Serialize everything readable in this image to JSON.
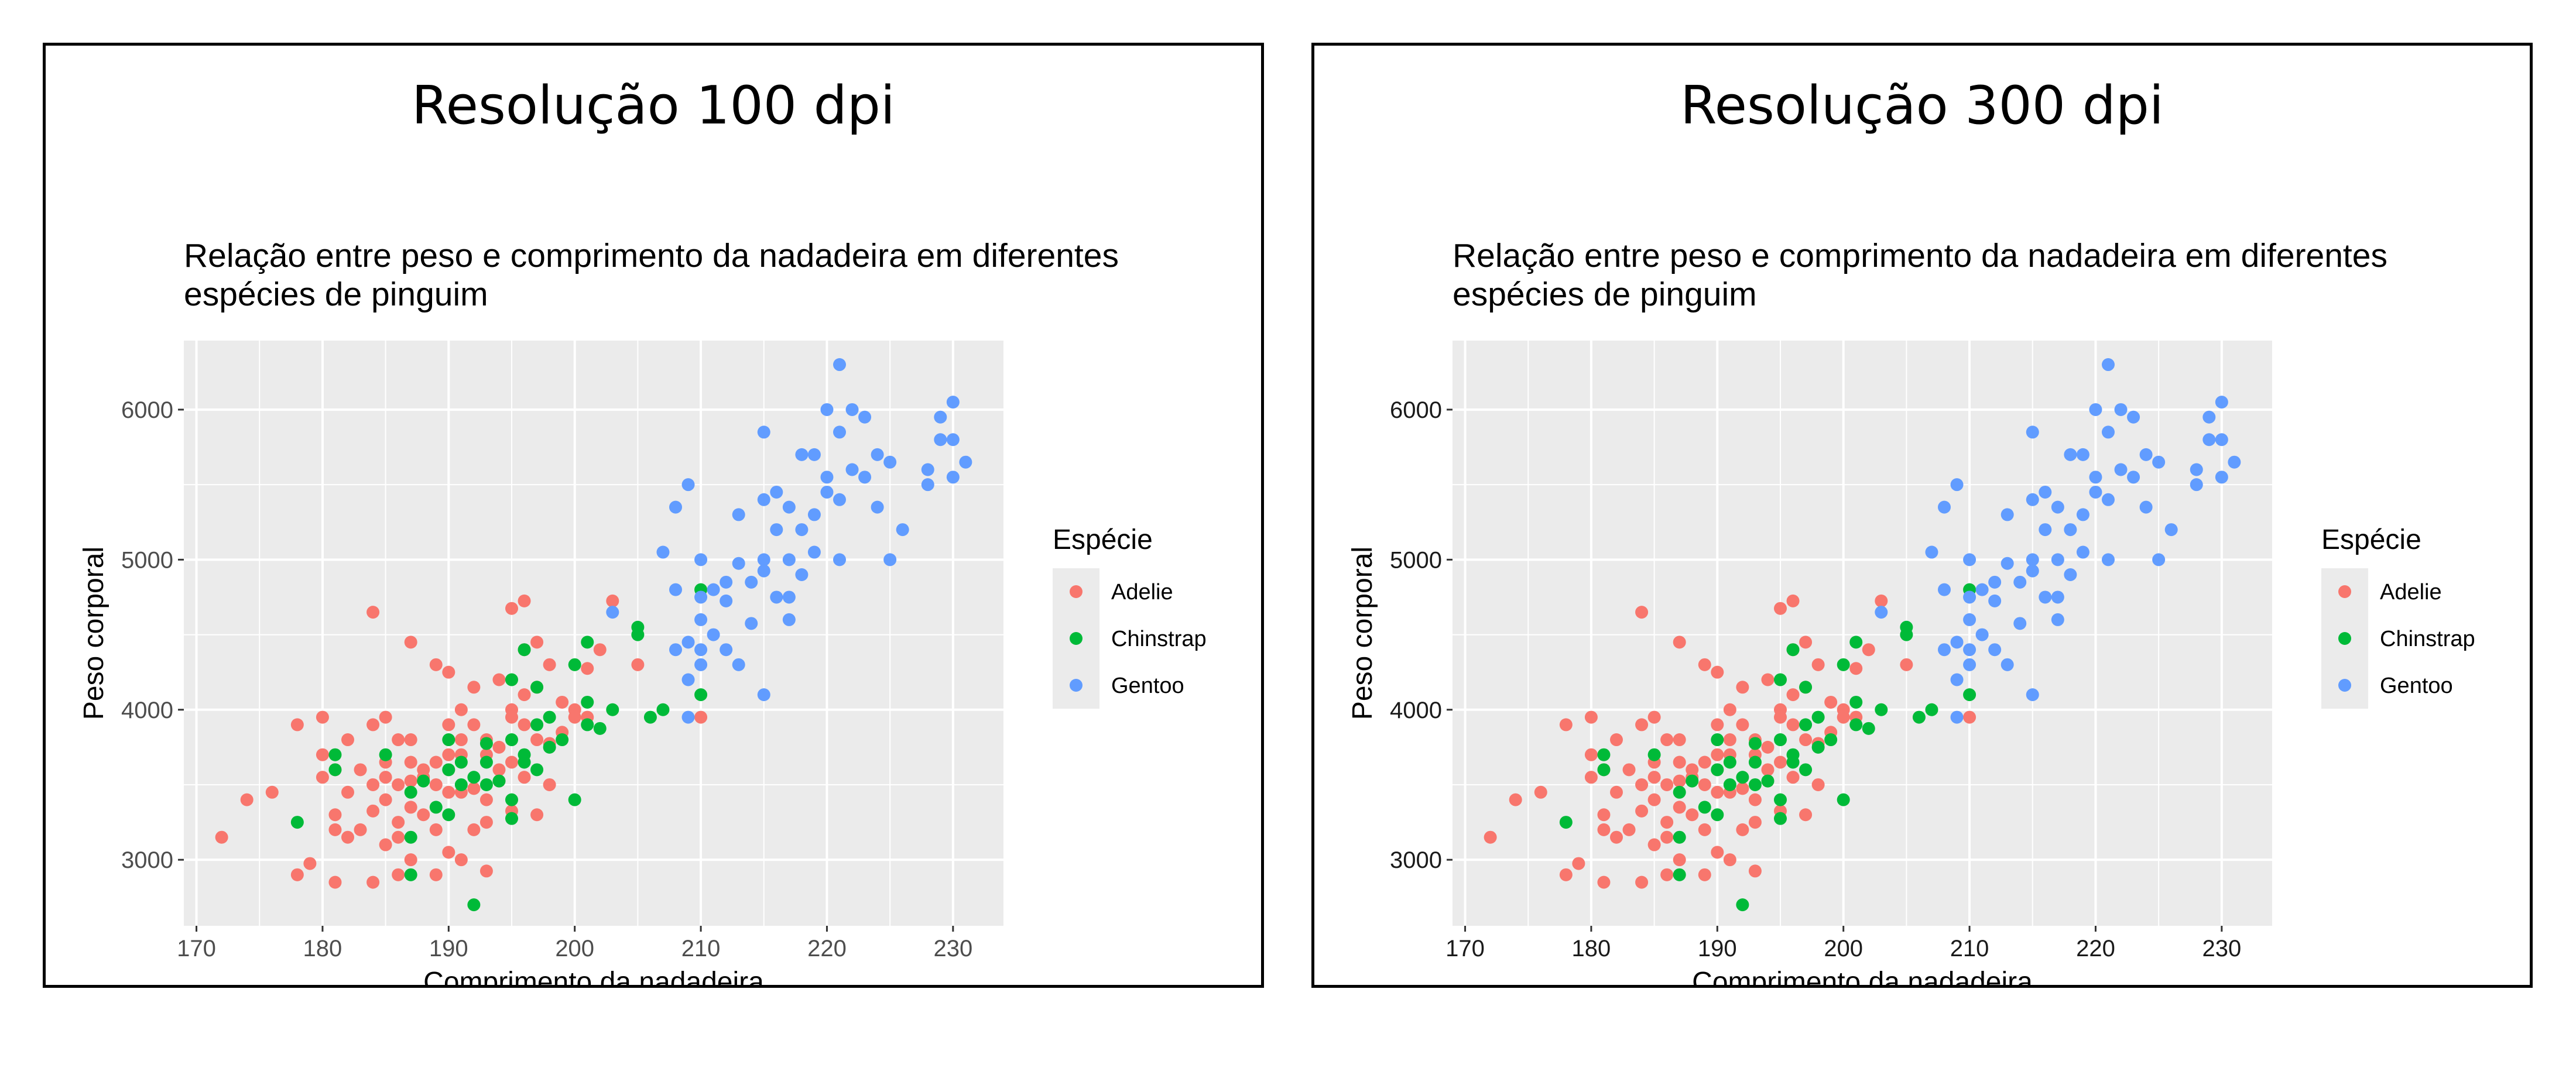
{
  "panels": [
    {
      "id": "left",
      "heading": "Resolução 100 dpi",
      "style": {
        "tick_label_color": "#4d4d4d",
        "title_color": "#000000"
      }
    },
    {
      "id": "right",
      "heading": "Resolução 300 dpi",
      "style": {
        "tick_label_color": "#1a1a1a",
        "title_color": "#000000"
      }
    }
  ],
  "colors": {
    "Adelie": "#F8766D",
    "Chinstrap": "#00BA38",
    "Gentoo": "#619CFF",
    "panel_background": "#EBEBEB",
    "grid": "#FFFFFF"
  },
  "chart_data": {
    "type": "scatter",
    "title_lines": [
      "Relação entre peso e comprimento da nadadeira em diferentes",
      "espécies de pinguim"
    ],
    "xlabel": "Comprimento da nadadeira",
    "ylabel": "Peso corporal",
    "xlim": [
      169,
      234
    ],
    "ylim": [
      2560,
      6460
    ],
    "x_ticks": [
      170,
      180,
      190,
      200,
      210,
      220,
      230
    ],
    "y_ticks": [
      3000,
      4000,
      5000,
      6000
    ],
    "grid": true,
    "legend": {
      "title": "Espécie",
      "position": "right",
      "entries": [
        "Adelie",
        "Chinstrap",
        "Gentoo"
      ]
    },
    "series": [
      {
        "name": "Adelie",
        "points": [
          [
            172,
            3150
          ],
          [
            174,
            3400
          ],
          [
            176,
            3450
          ],
          [
            178,
            2900
          ],
          [
            178,
            3900
          ],
          [
            179,
            2975
          ],
          [
            180,
            3700
          ],
          [
            180,
            3950
          ],
          [
            180,
            3550
          ],
          [
            181,
            3600
          ],
          [
            181,
            3300
          ],
          [
            181,
            2850
          ],
          [
            181,
            3200
          ],
          [
            182,
            3150
          ],
          [
            182,
            3800
          ],
          [
            182,
            3450
          ],
          [
            183,
            3600
          ],
          [
            183,
            3200
          ],
          [
            184,
            4650
          ],
          [
            184,
            3325
          ],
          [
            184,
            3900
          ],
          [
            184,
            2850
          ],
          [
            184,
            3500
          ],
          [
            185,
            3550
          ],
          [
            185,
            3400
          ],
          [
            185,
            3950
          ],
          [
            185,
            3650
          ],
          [
            185,
            3100
          ],
          [
            186,
            3800
          ],
          [
            186,
            3250
          ],
          [
            186,
            3500
          ],
          [
            186,
            3150
          ],
          [
            186,
            2900
          ],
          [
            187,
            4450
          ],
          [
            187,
            3350
          ],
          [
            187,
            3650
          ],
          [
            187,
            3800
          ],
          [
            187,
            3525
          ],
          [
            187,
            3000
          ],
          [
            188,
            3550
          ],
          [
            188,
            3300
          ],
          [
            188,
            3600
          ],
          [
            189,
            3200
          ],
          [
            189,
            3650
          ],
          [
            189,
            4300
          ],
          [
            189,
            3500
          ],
          [
            189,
            2900
          ],
          [
            190,
            4250
          ],
          [
            190,
            3700
          ],
          [
            190,
            3450
          ],
          [
            190,
            3900
          ],
          [
            190,
            3050
          ],
          [
            190,
            3600
          ],
          [
            191,
            3800
          ],
          [
            191,
            4000
          ],
          [
            191,
            3700
          ],
          [
            191,
            3450
          ],
          [
            191,
            3000
          ],
          [
            192,
            3900
          ],
          [
            192,
            3475
          ],
          [
            192,
            3200
          ],
          [
            192,
            4150
          ],
          [
            193,
            3700
          ],
          [
            193,
            3800
          ],
          [
            193,
            2925
          ],
          [
            193,
            3250
          ],
          [
            193,
            3400
          ],
          [
            194,
            4200
          ],
          [
            194,
            3600
          ],
          [
            194,
            3750
          ],
          [
            194,
            3525
          ],
          [
            195,
            4000
          ],
          [
            195,
            3650
          ],
          [
            195,
            3950
          ],
          [
            195,
            4675
          ],
          [
            195,
            3325
          ],
          [
            196,
            4100
          ],
          [
            196,
            3550
          ],
          [
            196,
            4400
          ],
          [
            196,
            4725
          ],
          [
            196,
            3900
          ],
          [
            197,
            4150
          ],
          [
            197,
            3300
          ],
          [
            197,
            3800
          ],
          [
            197,
            4450
          ],
          [
            198,
            4300
          ],
          [
            198,
            3500
          ],
          [
            198,
            3775
          ],
          [
            199,
            4050
          ],
          [
            199,
            3850
          ],
          [
            200,
            4000
          ],
          [
            200,
            3950
          ],
          [
            201,
            4275
          ],
          [
            201,
            3950
          ],
          [
            202,
            4400
          ],
          [
            203,
            4725
          ],
          [
            205,
            4300
          ],
          [
            210,
            3950
          ]
        ]
      },
      {
        "name": "Chinstrap",
        "points": [
          [
            178,
            3250
          ],
          [
            181,
            3700
          ],
          [
            181,
            3600
          ],
          [
            185,
            3700
          ],
          [
            187,
            2900
          ],
          [
            187,
            3450
          ],
          [
            187,
            3150
          ],
          [
            188,
            3525
          ],
          [
            189,
            3350
          ],
          [
            190,
            3600
          ],
          [
            190,
            3300
          ],
          [
            190,
            3800
          ],
          [
            191,
            3500
          ],
          [
            191,
            3650
          ],
          [
            192,
            2700
          ],
          [
            192,
            3550
          ],
          [
            193,
            3650
          ],
          [
            193,
            3775
          ],
          [
            193,
            3500
          ],
          [
            194,
            3525
          ],
          [
            195,
            3400
          ],
          [
            195,
            3800
          ],
          [
            195,
            4200
          ],
          [
            195,
            3275
          ],
          [
            196,
            3650
          ],
          [
            196,
            4400
          ],
          [
            196,
            3700
          ],
          [
            197,
            3900
          ],
          [
            197,
            3600
          ],
          [
            197,
            4150
          ],
          [
            198,
            3750
          ],
          [
            198,
            3950
          ],
          [
            199,
            3800
          ],
          [
            200,
            4300
          ],
          [
            200,
            3400
          ],
          [
            201,
            4450
          ],
          [
            201,
            3900
          ],
          [
            201,
            4050
          ],
          [
            202,
            3875
          ],
          [
            203,
            4000
          ],
          [
            205,
            4550
          ],
          [
            205,
            4500
          ],
          [
            206,
            3950
          ],
          [
            207,
            4000
          ],
          [
            210,
            4100
          ],
          [
            210,
            4800
          ]
        ]
      },
      {
        "name": "Gentoo",
        "points": [
          [
            203,
            4650
          ],
          [
            207,
            5050
          ],
          [
            208,
            4400
          ],
          [
            208,
            4800
          ],
          [
            208,
            5350
          ],
          [
            209,
            4200
          ],
          [
            209,
            4450
          ],
          [
            209,
            3950
          ],
          [
            209,
            5500
          ],
          [
            210,
            4600
          ],
          [
            210,
            4750
          ],
          [
            210,
            5000
          ],
          [
            210,
            4300
          ],
          [
            210,
            4400
          ],
          [
            211,
            4800
          ],
          [
            211,
            4500
          ],
          [
            212,
            4850
          ],
          [
            212,
            4400
          ],
          [
            212,
            4725
          ],
          [
            213,
            4975
          ],
          [
            213,
            4300
          ],
          [
            213,
            5300
          ],
          [
            214,
            4850
          ],
          [
            214,
            4575
          ],
          [
            215,
            5850
          ],
          [
            215,
            5000
          ],
          [
            215,
            4100
          ],
          [
            215,
            5400
          ],
          [
            215,
            4925
          ],
          [
            216,
            5200
          ],
          [
            216,
            4750
          ],
          [
            216,
            5450
          ],
          [
            217,
            4600
          ],
          [
            217,
            5000
          ],
          [
            217,
            4750
          ],
          [
            217,
            5350
          ],
          [
            218,
            5700
          ],
          [
            218,
            4900
          ],
          [
            218,
            5200
          ],
          [
            219,
            5050
          ],
          [
            219,
            5700
          ],
          [
            219,
            5300
          ],
          [
            220,
            5450
          ],
          [
            220,
            6000
          ],
          [
            220,
            5550
          ],
          [
            221,
            5850
          ],
          [
            221,
            6300
          ],
          [
            221,
            5000
          ],
          [
            221,
            5400
          ],
          [
            222,
            6000
          ],
          [
            222,
            5600
          ],
          [
            223,
            5950
          ],
          [
            223,
            5550
          ],
          [
            224,
            5700
          ],
          [
            224,
            5350
          ],
          [
            225,
            5650
          ],
          [
            225,
            5000
          ],
          [
            226,
            5200
          ],
          [
            228,
            5500
          ],
          [
            228,
            5600
          ],
          [
            229,
            5800
          ],
          [
            229,
            5950
          ],
          [
            230,
            6050
          ],
          [
            230,
            5550
          ],
          [
            230,
            5800
          ],
          [
            231,
            5650
          ]
        ]
      }
    ]
  }
}
